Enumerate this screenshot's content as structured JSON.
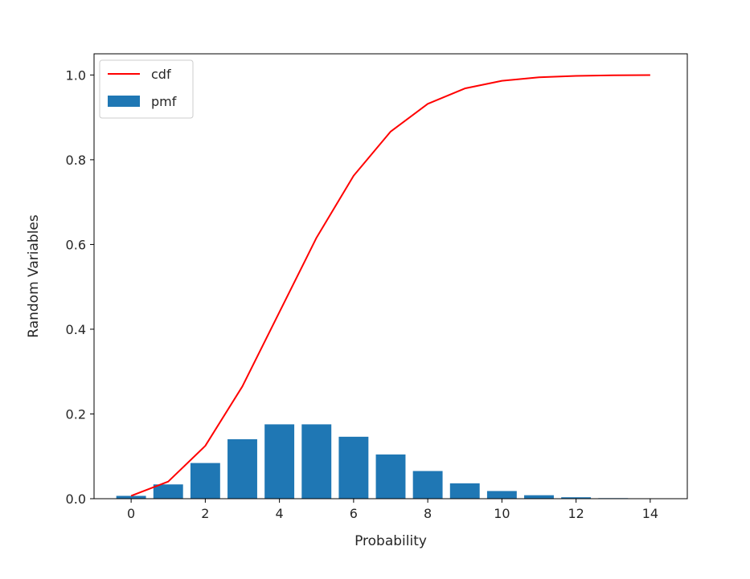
{
  "chart_data": {
    "type": "bar",
    "title": "",
    "xlabel": "Probability",
    "ylabel": "Random Variables",
    "xlim": [
      -1,
      15
    ],
    "ylim": [
      0,
      1.05
    ],
    "xticks": [
      0,
      2,
      4,
      6,
      8,
      10,
      12,
      14
    ],
    "xtick_labels": [
      "0",
      "2",
      "4",
      "6",
      "8",
      "10",
      "12",
      "14"
    ],
    "yticks": [
      0.0,
      0.2,
      0.4,
      0.6,
      0.8,
      1.0
    ],
    "ytick_labels": [
      "0.0",
      "0.2",
      "0.4",
      "0.6",
      "0.8",
      "1.0"
    ],
    "grid": false,
    "legend": {
      "position": "top-left",
      "entries": [
        {
          "label": "cdf",
          "kind": "line",
          "color": "#ff0000"
        },
        {
          "label": "pmf",
          "kind": "bar",
          "color": "#1f77b4"
        }
      ]
    },
    "x": [
      0,
      1,
      2,
      3,
      4,
      5,
      6,
      7,
      8,
      9,
      10,
      11,
      12,
      13,
      14
    ],
    "series": [
      {
        "name": "pmf",
        "type": "bar",
        "color": "#1f77b4",
        "values": [
          0.0067,
          0.0337,
          0.0842,
          0.1404,
          0.1755,
          0.1755,
          0.1462,
          0.1044,
          0.0653,
          0.0363,
          0.0181,
          0.0082,
          0.0034,
          0.0013,
          0.0005
        ]
      },
      {
        "name": "cdf",
        "type": "line",
        "color": "#ff0000",
        "values": [
          0.0067,
          0.0404,
          0.1247,
          0.265,
          0.4405,
          0.616,
          0.7622,
          0.8666,
          0.9319,
          0.9682,
          0.9863,
          0.9945,
          0.998,
          0.9993,
          0.9998
        ]
      }
    ]
  }
}
